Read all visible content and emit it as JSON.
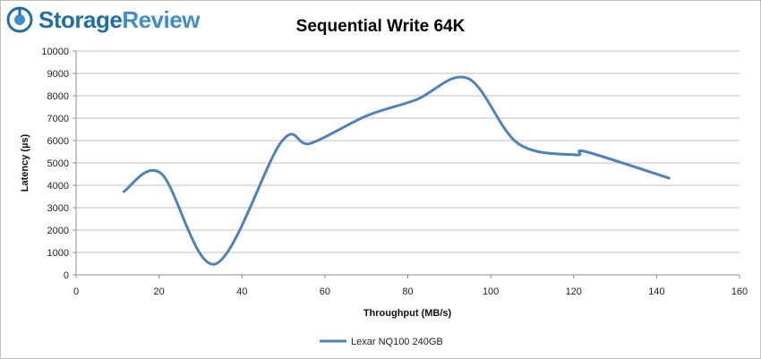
{
  "brand": {
    "name_part1": "Storage",
    "name_part2": "Review",
    "colors": {
      "dark": "#1f6fa8",
      "light": "#3e8fc9"
    },
    "icon": "storagereview-logo-icon"
  },
  "chart_data": {
    "type": "line",
    "title": "Sequential Write 64K",
    "xlabel": "Throughput (MB/s)",
    "ylabel": "Latency (µs)",
    "xlim": [
      0,
      160
    ],
    "ylim": [
      0,
      10000
    ],
    "xticks": [
      0,
      20,
      40,
      60,
      80,
      100,
      120,
      140,
      160
    ],
    "yticks": [
      0,
      1000,
      2000,
      3000,
      4000,
      5000,
      6000,
      7000,
      8000,
      9000,
      10000
    ],
    "grid": true,
    "legend_position": "bottom",
    "series": [
      {
        "name": "Lexar NQ100 240GB",
        "color": "#4f81bd",
        "x": [
          11.5,
          20.5,
          33.5,
          49.5,
          56.5,
          70,
          82,
          94.5,
          106.5,
          120.5,
          123,
          143
        ],
        "y": [
          3720,
          4530,
          480,
          5940,
          5870,
          7100,
          7820,
          8780,
          5880,
          5360,
          5500,
          4320
        ]
      }
    ]
  }
}
